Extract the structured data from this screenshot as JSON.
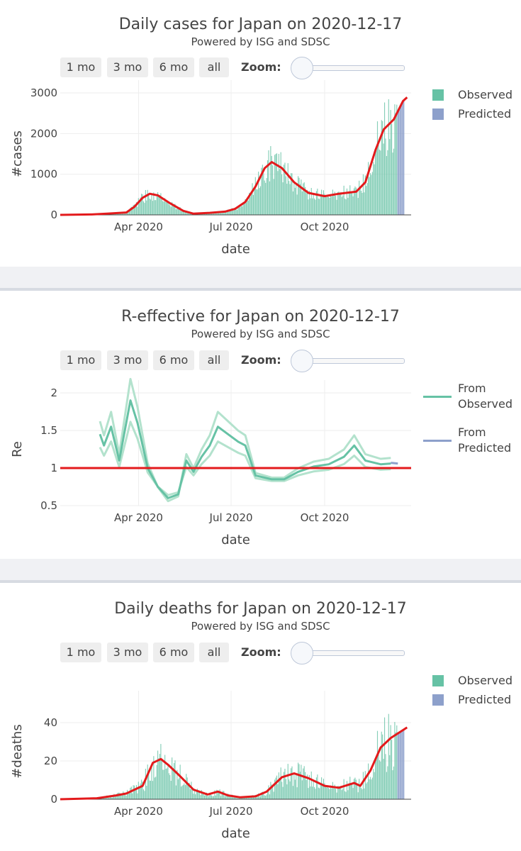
{
  "range_buttons": [
    "1 mo",
    "3 mo",
    "6 mo",
    "all"
  ],
  "zoom_label": "Zoom:",
  "colors": {
    "observed": "#66c2a5",
    "predicted": "#8da0cb",
    "trend": "#e31a1c",
    "r_line": "#66c2a5",
    "r_band": "#b3e2cd"
  },
  "chart_data": [
    {
      "id": "cases",
      "type": "bar",
      "title": "Daily cases for Japan on 2020-12-17",
      "subtitle": "Powered by ISG and SDSC",
      "xlabel": "date",
      "ylabel": "#cases",
      "xlim": [
        "2020-01-15",
        "2020-12-25"
      ],
      "ylim": [
        0,
        3000
      ],
      "yticks": [
        "0",
        "1000",
        "2000",
        "3000"
      ],
      "xticks": [
        "Apr 2020",
        "Jul 2020",
        "Oct 2020"
      ],
      "legend": [
        "Observed",
        "Predicted"
      ],
      "trend": [
        [
          "2020-01-15",
          0
        ],
        [
          "2020-02-15",
          10
        ],
        [
          "2020-03-01",
          30
        ],
        [
          "2020-03-20",
          60
        ],
        [
          "2020-03-28",
          200
        ],
        [
          "2020-04-05",
          420
        ],
        [
          "2020-04-12",
          520
        ],
        [
          "2020-04-20",
          480
        ],
        [
          "2020-05-01",
          300
        ],
        [
          "2020-05-15",
          100
        ],
        [
          "2020-05-25",
          30
        ],
        [
          "2020-06-10",
          50
        ],
        [
          "2020-06-25",
          80
        ],
        [
          "2020-07-05",
          150
        ],
        [
          "2020-07-15",
          320
        ],
        [
          "2020-07-25",
          700
        ],
        [
          "2020-08-03",
          1150
        ],
        [
          "2020-08-10",
          1300
        ],
        [
          "2020-08-20",
          1150
        ],
        [
          "2020-09-01",
          800
        ],
        [
          "2020-09-15",
          540
        ],
        [
          "2020-10-01",
          460
        ],
        [
          "2020-10-15",
          520
        ],
        [
          "2020-11-01",
          570
        ],
        [
          "2020-11-10",
          800
        ],
        [
          "2020-11-20",
          1600
        ],
        [
          "2020-11-28",
          2100
        ],
        [
          "2020-12-08",
          2350
        ],
        [
          "2020-12-17",
          2800
        ],
        [
          "2020-12-21",
          2890
        ]
      ],
      "predicted_range": [
        "2020-12-12",
        "2020-12-18"
      ]
    },
    {
      "id": "re",
      "type": "line",
      "title": "R-effective for Japan on 2020-12-17",
      "subtitle": "Powered by ISG and SDSC",
      "xlabel": "date",
      "ylabel": "Re",
      "xlim": [
        "2020-01-15",
        "2020-12-25"
      ],
      "ylim": [
        0.4,
        2.2
      ],
      "yticks": [
        "0.5",
        "1",
        "1.5",
        "2"
      ],
      "xticks": [
        "Apr 2020",
        "Jul 2020",
        "Oct 2020"
      ],
      "legend": [
        "From\nObserved",
        "From\nPredicted"
      ],
      "reference": 1,
      "series": [
        {
          "name": "From Observed",
          "values": [
            [
              "2020-02-23",
              1.45
            ],
            [
              "2020-02-27",
              1.3
            ],
            [
              "2020-03-05",
              1.55
            ],
            [
              "2020-03-13",
              1.1
            ],
            [
              "2020-03-24",
              1.9
            ],
            [
              "2020-03-31",
              1.6
            ],
            [
              "2020-04-10",
              1.0
            ],
            [
              "2020-04-20",
              0.75
            ],
            [
              "2020-04-30",
              0.6
            ],
            [
              "2020-05-10",
              0.65
            ],
            [
              "2020-05-18",
              1.1
            ],
            [
              "2020-05-25",
              0.95
            ],
            [
              "2020-06-02",
              1.15
            ],
            [
              "2020-06-10",
              1.3
            ],
            [
              "2020-06-18",
              1.55
            ],
            [
              "2020-06-28",
              1.45
            ],
            [
              "2020-07-08",
              1.35
            ],
            [
              "2020-07-15",
              1.3
            ],
            [
              "2020-07-25",
              0.9
            ],
            [
              "2020-08-10",
              0.85
            ],
            [
              "2020-08-22",
              0.85
            ],
            [
              "2020-09-05",
              0.95
            ],
            [
              "2020-09-20",
              1.02
            ],
            [
              "2020-10-05",
              1.05
            ],
            [
              "2020-10-20",
              1.15
            ],
            [
              "2020-10-30",
              1.3
            ],
            [
              "2020-11-10",
              1.1
            ],
            [
              "2020-11-25",
              1.05
            ],
            [
              "2020-12-05",
              1.06
            ]
          ]
        },
        {
          "name": "From Predicted",
          "values": [
            [
              "2020-12-05",
              1.07
            ],
            [
              "2020-12-12",
              1.06
            ]
          ]
        }
      ]
    },
    {
      "id": "deaths",
      "type": "bar",
      "title": "Daily deaths for Japan on 2020-12-17",
      "subtitle": "Powered by ISG and SDSC",
      "xlabel": "date",
      "ylabel": "#deaths",
      "xlim": [
        "2020-01-15",
        "2020-12-25"
      ],
      "ylim": [
        0,
        50
      ],
      "yticks": [
        "0",
        "20",
        "40"
      ],
      "xticks": [
        "Apr 2020",
        "Jul 2020",
        "Oct 2020"
      ],
      "legend": [
        "Observed",
        "Predicted"
      ],
      "trend": [
        [
          "2020-01-15",
          0
        ],
        [
          "2020-02-20",
          0.5
        ],
        [
          "2020-03-10",
          2
        ],
        [
          "2020-03-20",
          3
        ],
        [
          "2020-04-05",
          7
        ],
        [
          "2020-04-15",
          19
        ],
        [
          "2020-04-23",
          21
        ],
        [
          "2020-04-30",
          18
        ],
        [
          "2020-05-10",
          13
        ],
        [
          "2020-05-25",
          5
        ],
        [
          "2020-06-08",
          2.5
        ],
        [
          "2020-06-18",
          4
        ],
        [
          "2020-06-28",
          2
        ],
        [
          "2020-07-10",
          1
        ],
        [
          "2020-07-25",
          1.5
        ],
        [
          "2020-08-05",
          4
        ],
        [
          "2020-08-20",
          11.5
        ],
        [
          "2020-09-01",
          13.5
        ],
        [
          "2020-09-15",
          11
        ],
        [
          "2020-10-01",
          7
        ],
        [
          "2020-10-15",
          6
        ],
        [
          "2020-10-30",
          8.5
        ],
        [
          "2020-11-05",
          7
        ],
        [
          "2020-11-15",
          15
        ],
        [
          "2020-11-25",
          27
        ],
        [
          "2020-12-05",
          32
        ],
        [
          "2020-12-21",
          37.5
        ]
      ],
      "predicted_range": [
        "2020-12-12",
        "2020-12-18"
      ]
    }
  ]
}
